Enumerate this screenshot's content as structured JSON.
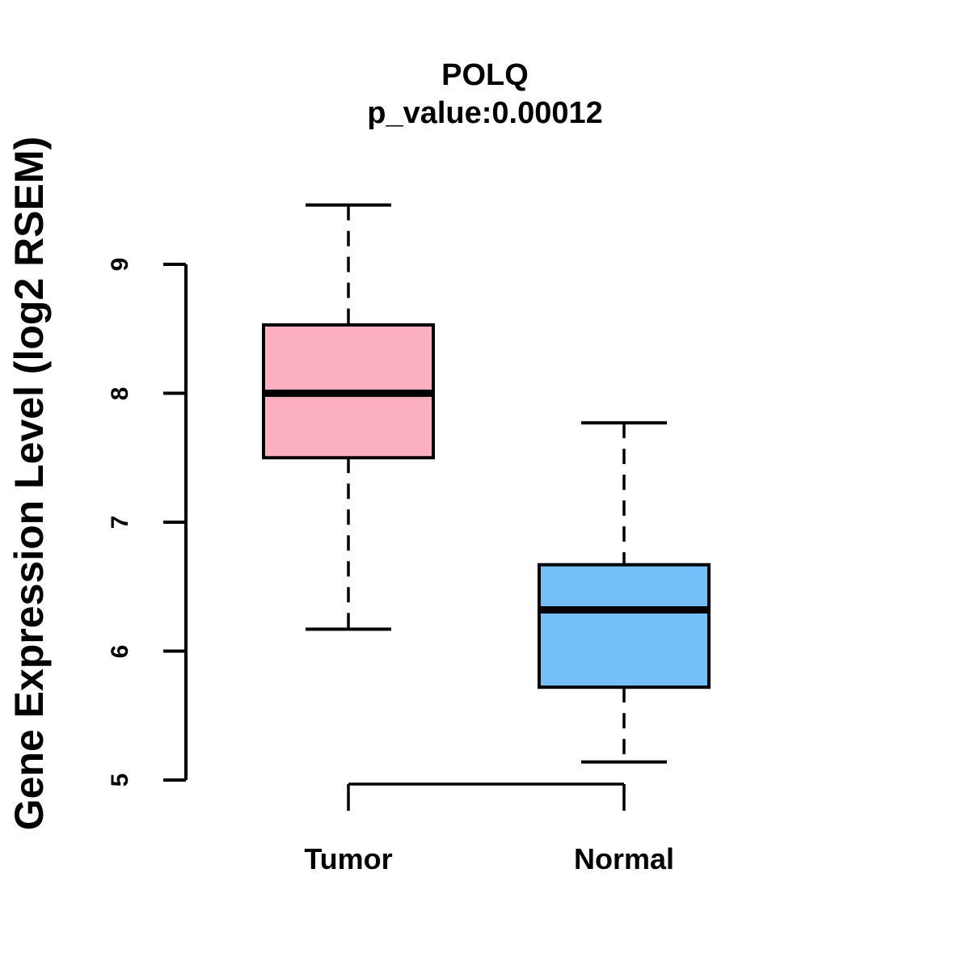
{
  "figure": {
    "title": "POLQ",
    "subtitle": "p_value:0.00012"
  },
  "chart_data": {
    "type": "boxplot",
    "title": "POLQ",
    "subtitle": "p_value:0.00012",
    "gene": "POLQ",
    "p_value": "0.00012",
    "xlabel": "",
    "ylabel": "Gene Expression Level (log2 RSEM)",
    "categories": [
      "Tumor",
      "Normal"
    ],
    "yticks": [
      5,
      6,
      7,
      8,
      9
    ],
    "ylim": [
      5,
      9
    ],
    "grid": false,
    "legend": "none",
    "series": [
      {
        "name": "Tumor",
        "color": "#FDAFC0",
        "whisker_low": 6.17,
        "q1": 7.5,
        "median": 8.0,
        "q3": 8.53,
        "whisker_high": 9.46,
        "outliers": []
      },
      {
        "name": "Normal",
        "color": "#74BEF7",
        "whisker_low": 5.14,
        "q1": 5.72,
        "median": 6.32,
        "q3": 6.67,
        "whisker_high": 7.77,
        "outliers": []
      }
    ]
  }
}
